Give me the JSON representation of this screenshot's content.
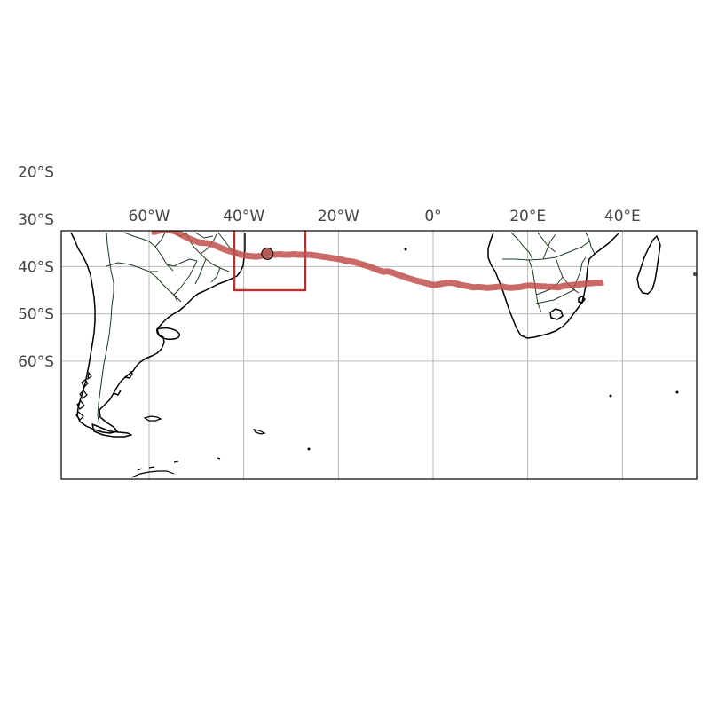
{
  "map": {
    "projection": "PlateCarree",
    "extent": {
      "lon": [
        -78.8,
        55.8
      ],
      "lat": [
        -64.8,
        -12.5
      ]
    },
    "gridlines": {
      "lon": [
        -60,
        -40,
        -20,
        0,
        20,
        40
      ],
      "lat": [
        -20,
        -30,
        -40,
        -50,
        -60
      ],
      "lon_labels": [
        "60°W",
        "40°W",
        "20°W",
        "0°",
        "20°E",
        "40°E"
      ],
      "lat_labels": [
        "20°S",
        "30°S",
        "40°S",
        "50°S",
        "60°S"
      ]
    },
    "colors": {
      "track": "#c0504d",
      "box": "#b5332e",
      "marker_fill": "#b05b58",
      "coastline": "#000000",
      "borders": "#1f3a1f",
      "grid": "#b0b0b0"
    },
    "highlight_box": {
      "lon": [
        -42,
        -27
      ],
      "lat": [
        -30,
        -45
      ]
    },
    "current_position": {
      "lon": -35,
      "lat": -37.3
    },
    "track": [
      [
        -59.5,
        -32.7
      ],
      [
        -58.5,
        -32.6
      ],
      [
        -57.5,
        -32.3
      ],
      [
        -56.5,
        -32.2
      ],
      [
        -55.5,
        -32.3
      ],
      [
        -54.5,
        -32.6
      ],
      [
        -53.5,
        -33.1
      ],
      [
        -52.5,
        -33.6
      ],
      [
        -51.5,
        -34.1
      ],
      [
        -50.5,
        -34.5
      ],
      [
        -49.5,
        -34.9
      ],
      [
        -48.5,
        -35.0
      ],
      [
        -47.5,
        -35.1
      ],
      [
        -46.5,
        -35.4
      ],
      [
        -45.5,
        -35.8
      ],
      [
        -44.5,
        -36.2
      ],
      [
        -43.5,
        -36.6
      ],
      [
        -42.5,
        -36.9
      ],
      [
        -41.5,
        -37.2
      ],
      [
        -40.5,
        -37.5
      ],
      [
        -39.5,
        -37.7
      ],
      [
        -38.5,
        -37.8
      ],
      [
        -37.5,
        -37.9
      ],
      [
        -36.5,
        -37.8
      ],
      [
        -35.5,
        -37.6
      ],
      [
        -34.5,
        -37.5
      ],
      [
        -33.5,
        -37.5
      ],
      [
        -32.5,
        -37.4
      ],
      [
        -31.5,
        -37.5
      ],
      [
        -30.5,
        -37.5
      ],
      [
        -29.5,
        -37.4
      ],
      [
        -28.5,
        -37.5
      ],
      [
        -27.5,
        -37.5
      ],
      [
        -26.5,
        -37.5
      ],
      [
        -25.5,
        -37.6
      ],
      [
        -24.5,
        -37.7
      ],
      [
        -23.5,
        -37.9
      ],
      [
        -22.5,
        -38.0
      ],
      [
        -21.5,
        -38.2
      ],
      [
        -20.5,
        -38.3
      ],
      [
        -19.5,
        -38.5
      ],
      [
        -18.5,
        -38.8
      ],
      [
        -17.5,
        -38.9
      ],
      [
        -16.5,
        -39.1
      ],
      [
        -15.5,
        -39.4
      ],
      [
        -14.5,
        -39.7
      ],
      [
        -13.5,
        -40.0
      ],
      [
        -12.5,
        -40.4
      ],
      [
        -11.5,
        -40.8
      ],
      [
        -10.5,
        -41.1
      ],
      [
        -9.5,
        -41.0
      ],
      [
        -8.5,
        -41.3
      ],
      [
        -7.5,
        -41.7
      ],
      [
        -6.5,
        -42.0
      ],
      [
        -5.5,
        -42.4
      ],
      [
        -4.5,
        -42.7
      ],
      [
        -3.5,
        -43.0
      ],
      [
        -2.5,
        -43.2
      ],
      [
        -1.5,
        -43.5
      ],
      [
        -0.5,
        -43.8
      ],
      [
        0.5,
        -43.9
      ],
      [
        1.5,
        -43.7
      ],
      [
        2.5,
        -43.5
      ],
      [
        3.5,
        -43.4
      ],
      [
        4.5,
        -43.5
      ],
      [
        5.5,
        -43.8
      ],
      [
        6.5,
        -44.0
      ],
      [
        7.5,
        -44.2
      ],
      [
        8.5,
        -44.4
      ],
      [
        9.5,
        -44.3
      ],
      [
        10.5,
        -44.4
      ],
      [
        11.5,
        -44.5
      ],
      [
        12.5,
        -44.4
      ],
      [
        13.5,
        -44.3
      ],
      [
        14.5,
        -44.2
      ],
      [
        15.5,
        -44.4
      ],
      [
        16.5,
        -44.5
      ],
      [
        17.5,
        -44.4
      ],
      [
        18.5,
        -44.3
      ],
      [
        19.5,
        -44.1
      ],
      [
        20.5,
        -44.0
      ],
      [
        21.5,
        -44.1
      ],
      [
        22.5,
        -44.2
      ],
      [
        23.5,
        -44.2
      ],
      [
        24.5,
        -44.3
      ],
      [
        25.5,
        -44.3
      ],
      [
        26.5,
        -44.4
      ],
      [
        27.5,
        -44.1
      ],
      [
        28.5,
        -44.0
      ],
      [
        29.5,
        -43.9
      ],
      [
        30.5,
        -43.8
      ],
      [
        31.5,
        -43.7
      ],
      [
        32.5,
        -43.6
      ],
      [
        33.5,
        -43.5
      ],
      [
        34.5,
        -43.4
      ],
      [
        35.5,
        -43.4
      ],
      [
        36.0,
        -43.3
      ]
    ]
  }
}
